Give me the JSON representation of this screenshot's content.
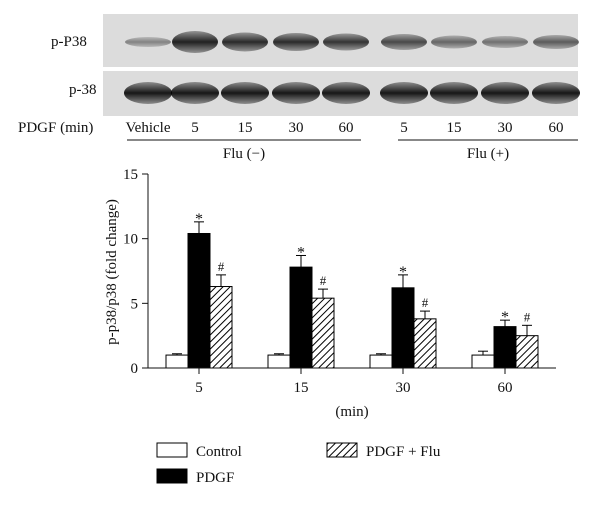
{
  "blot": {
    "rows": [
      {
        "label": "p-P38"
      },
      {
        "label": "p-38"
      }
    ],
    "treatment_label": "PDGF (min)",
    "lanes": [
      "Vehicle",
      "5",
      "15",
      "30",
      "60",
      "5",
      "15",
      "30",
      "60"
    ],
    "groups": [
      {
        "label": "Flu (−)"
      },
      {
        "label": "Flu (+)"
      }
    ]
  },
  "chart_data": {
    "type": "bar",
    "categories": [
      "5",
      "15",
      "30",
      "60"
    ],
    "xlabel": "(min)",
    "ylabel": "p-p38/p38 (fold change)",
    "ylim": [
      0,
      15
    ],
    "yticks": [
      0,
      5,
      10,
      15
    ],
    "legend_position": "bottom",
    "series": [
      {
        "name": "Control",
        "fill": "white",
        "values": [
          1.0,
          1.0,
          1.0,
          1.0
        ],
        "errors": [
          0.1,
          0.1,
          0.1,
          0.3
        ],
        "marks": [
          "",
          "",
          "",
          ""
        ]
      },
      {
        "name": "PDGF",
        "fill": "black",
        "values": [
          10.4,
          7.8,
          6.2,
          3.2
        ],
        "errors": [
          0.9,
          0.9,
          1.0,
          0.5
        ],
        "marks": [
          "*",
          "*",
          "*",
          "*"
        ]
      },
      {
        "name": "PDGF + Flu",
        "fill": "hatch",
        "values": [
          6.3,
          5.4,
          3.8,
          2.5
        ],
        "errors": [
          0.9,
          0.7,
          0.6,
          0.8
        ],
        "marks": [
          "#",
          "#",
          "#",
          "#"
        ]
      }
    ]
  }
}
